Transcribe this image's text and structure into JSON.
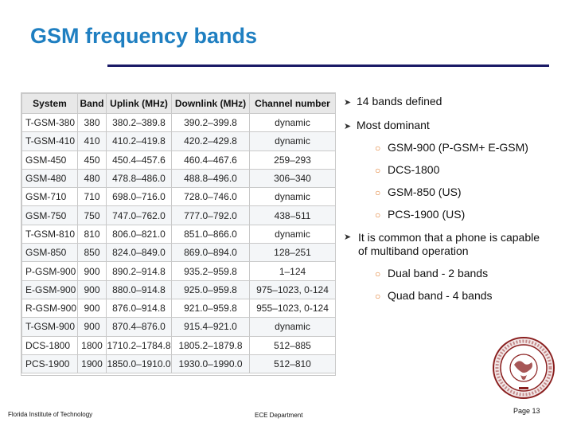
{
  "title": "GSM frequency bands",
  "table": {
    "headers": [
      "System",
      "Band",
      "Uplink (MHz)",
      "Downlink (MHz)",
      "Channel number"
    ],
    "rows": [
      [
        "T-GSM-380",
        "380",
        "380.2–389.8",
        "390.2–399.8",
        "dynamic"
      ],
      [
        "T-GSM-410",
        "410",
        "410.2–419.8",
        "420.2–429.8",
        "dynamic"
      ],
      [
        "GSM-450",
        "450",
        "450.4–457.6",
        "460.4–467.6",
        "259–293"
      ],
      [
        "GSM-480",
        "480",
        "478.8–486.0",
        "488.8–496.0",
        "306–340"
      ],
      [
        "GSM-710",
        "710",
        "698.0–716.0",
        "728.0–746.0",
        "dynamic"
      ],
      [
        "GSM-750",
        "750",
        "747.0–762.0",
        "777.0–792.0",
        "438–511"
      ],
      [
        "T-GSM-810",
        "810",
        "806.0–821.0",
        "851.0–866.0",
        "dynamic"
      ],
      [
        "GSM-850",
        "850",
        "824.0–849.0",
        "869.0–894.0",
        "128–251"
      ],
      [
        "P-GSM-900",
        "900",
        "890.2–914.8",
        "935.2–959.8",
        "1–124"
      ],
      [
        "E-GSM-900",
        "900",
        "880.0–914.8",
        "925.0–959.8",
        "975–1023, 0-124"
      ],
      [
        "R-GSM-900",
        "900",
        "876.0–914.8",
        "921.0–959.8",
        "955–1023, 0-124"
      ],
      [
        "T-GSM-900",
        "900",
        "870.4–876.0",
        "915.4–921.0",
        "dynamic"
      ],
      [
        "DCS-1800",
        "1800",
        "1710.2–1784.8",
        "1805.2–1879.8",
        "512–885"
      ],
      [
        "PCS-1900",
        "1900",
        "1850.0–1910.0",
        "1930.0–1990.0",
        "512–810"
      ]
    ]
  },
  "bullets": {
    "b1": "14 bands defined",
    "b2": "Most dominant",
    "b2_sub1": "GSM-900 (P-GSM+ E-GSM)",
    "b2_sub2": "DCS-1800",
    "b2_sub3": "GSM-850 (US)",
    "b2_sub4": "PCS-1900 (US)",
    "b3": "It is common that a phone is capable of multiband operation",
    "b3_sub1": "Dual band - 2 bands",
    "b3_sub2": "Quad band  - 4 bands"
  },
  "footer": {
    "left": "Florida Institute of Technology",
    "center": "ECE Department",
    "page": "Page 13"
  },
  "icons": {
    "bullet_main": "arrow-bullet-icon",
    "bullet_sub": "circle-bullet-icon",
    "logo": "university-seal"
  },
  "colors": {
    "title": "#1f7fc1",
    "rule": "#1a1a66",
    "sub_bullet": "#e07a2a",
    "seal": "#8a1f1f"
  }
}
